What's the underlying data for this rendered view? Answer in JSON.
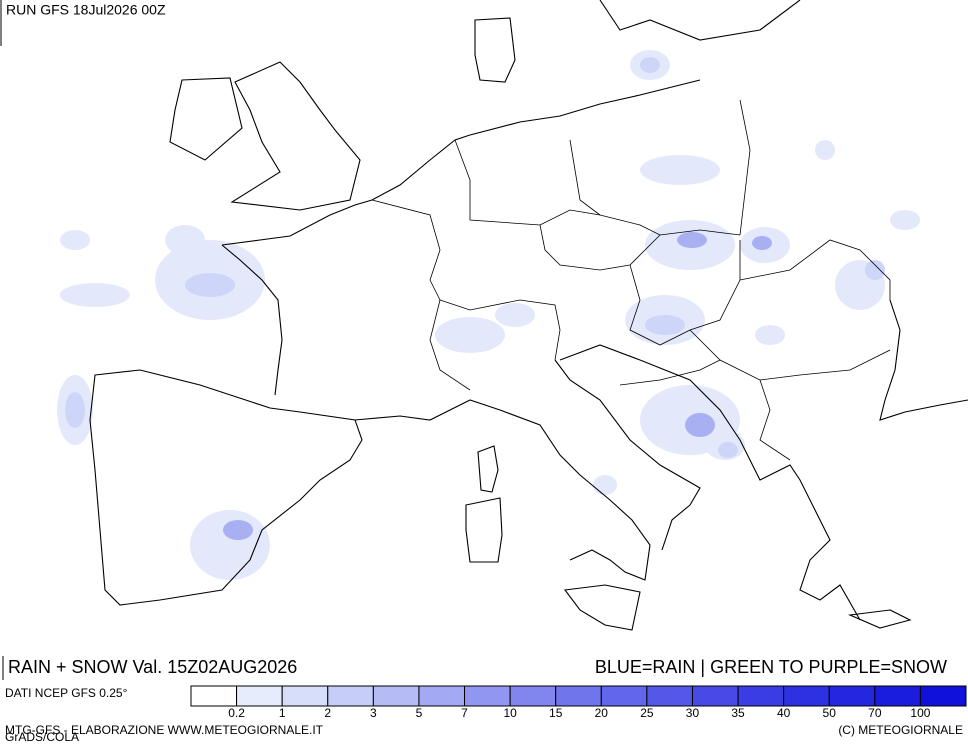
{
  "header": {
    "run": "RUN GFS 18Jul2026 00Z"
  },
  "footer": {
    "title_left": "RAIN + SNOW Val. 15Z02AUG2026",
    "title_right": "BLUE=RAIN | GREEN TO PURPLE=SNOW",
    "source": "DATI NCEP GFS 0.25°",
    "credit_left": "MTG-GFS - ELABORAZIONE WWW.METEOGIORNALE.IT",
    "credit_overlap": "GrADS/COLA",
    "credit_right": "(C) METEOGIORNALE"
  },
  "legend": {
    "colors": [
      "#ffffff",
      "#e6ecfb",
      "#d6defa",
      "#c6cef8",
      "#b4bbf5",
      "#a3a9f3",
      "#9197f0",
      "#8086ee",
      "#7075ec",
      "#6266ea",
      "#5458e8",
      "#474ae6",
      "#3a3de4",
      "#2e31e2",
      "#2426e0",
      "#1a1cde",
      "#1012dc"
    ],
    "labels": [
      0.2,
      1,
      2,
      3,
      5,
      7,
      10,
      15,
      20,
      25,
      30,
      35,
      40,
      50,
      70,
      100
    ]
  }
}
